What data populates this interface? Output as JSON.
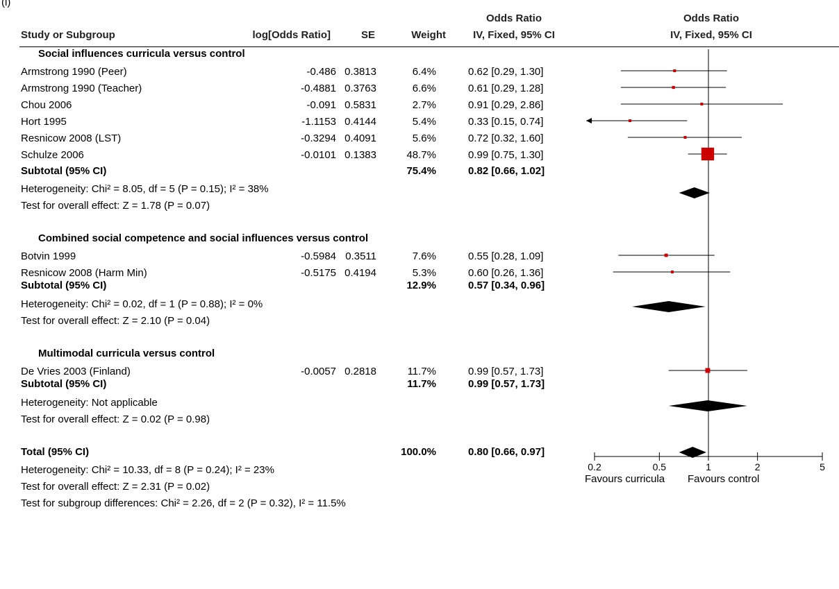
{
  "chart_data": {
    "type": "forest",
    "corner_label": "(i)",
    "headers": {
      "study": "Study or Subgroup",
      "logor": "log[Odds Ratio]",
      "se": "SE",
      "weight": "Weight",
      "or_title": "Odds Ratio",
      "or_method": "IV, Fixed, 95% CI",
      "plot_title": "Odds Ratio",
      "plot_method": "IV, Fixed, 95% CI"
    },
    "x_axis": {
      "scale": "log",
      "ticks": [
        "0.2",
        "0.5",
        "1",
        "2",
        "5"
      ],
      "tick_values": [
        0.2,
        0.5,
        1,
        2,
        5
      ],
      "range": [
        0.2,
        5
      ],
      "favours_left": "Favours curricula",
      "favours_right": "Favours control"
    },
    "groups": [
      {
        "title": "Social influences curricula versus control",
        "studies": [
          {
            "name": "Armstrong 1990 (Peer)",
            "logor": "-0.486",
            "se": "0.3813",
            "weight": "6.4%",
            "ci_text": "0.62 [0.29, 1.30]",
            "or": 0.62,
            "lo": 0.29,
            "hi": 1.3,
            "w": 6.4
          },
          {
            "name": "Armstrong 1990 (Teacher)",
            "logor": "-0.4881",
            "se": "0.3763",
            "weight": "6.6%",
            "ci_text": "0.61 [0.29, 1.28]",
            "or": 0.61,
            "lo": 0.29,
            "hi": 1.28,
            "w": 6.6
          },
          {
            "name": "Chou 2006",
            "logor": "-0.091",
            "se": "0.5831",
            "weight": "2.7%",
            "ci_text": "0.91 [0.29, 2.86]",
            "or": 0.91,
            "lo": 0.29,
            "hi": 2.86,
            "w": 2.7
          },
          {
            "name": "Hort 1995",
            "logor": "-1.1153",
            "se": "0.4144",
            "weight": "5.4%",
            "ci_text": "0.33 [0.15, 0.74]",
            "or": 0.33,
            "lo": 0.15,
            "hi": 0.74,
            "w": 5.4
          },
          {
            "name": "Resnicow 2008 (LST)",
            "logor": "-0.3294",
            "se": "0.4091",
            "weight": "5.6%",
            "ci_text": "0.72 [0.32, 1.60]",
            "or": 0.72,
            "lo": 0.32,
            "hi": 1.6,
            "w": 5.6
          },
          {
            "name": "Schulze 2006",
            "logor": "-0.0101",
            "se": "0.1383",
            "weight": "48.7%",
            "ci_text": "0.99 [0.75, 1.30]",
            "or": 0.99,
            "lo": 0.75,
            "hi": 1.3,
            "w": 48.7
          }
        ],
        "subtotal": {
          "label": "Subtotal (95% CI)",
          "weight": "75.4%",
          "ci_text": "0.82 [0.66, 1.02]",
          "or": 0.82,
          "lo": 0.66,
          "hi": 1.02
        },
        "heterogeneity": "Heterogeneity: Chi² = 8.05, df = 5 (P = 0.15); I² = 38%",
        "overall": "Test for overall effect: Z = 1.78 (P = 0.07)"
      },
      {
        "title": "Combined social competence and social influences versus control",
        "studies": [
          {
            "name": "Botvin 1999",
            "logor": "-0.5984",
            "se": "0.3511",
            "weight": "7.6%",
            "ci_text": "0.55 [0.28, 1.09]",
            "or": 0.55,
            "lo": 0.28,
            "hi": 1.09,
            "w": 7.6
          },
          {
            "name": "Resnicow 2008 (Harm Min)",
            "logor": "-0.5175",
            "se": "0.4194",
            "weight": "5.3%",
            "ci_text": "0.60 [0.26, 1.36]",
            "or": 0.6,
            "lo": 0.26,
            "hi": 1.36,
            "w": 5.3
          }
        ],
        "subtotal": {
          "label": "Subtotal (95% CI)",
          "weight": "12.9%",
          "ci_text": "0.57 [0.34, 0.96]",
          "or": 0.57,
          "lo": 0.34,
          "hi": 0.96
        },
        "heterogeneity": "Heterogeneity: Chi² = 0.02, df = 1 (P = 0.88); I² = 0%",
        "overall": "Test for overall effect: Z = 2.10 (P = 0.04)"
      },
      {
        "title": "Multimodal curricula versus control",
        "studies": [
          {
            "name": "De Vries 2003 (Finland)",
            "logor": "-0.0057",
            "se": "0.2818",
            "weight": "11.7%",
            "ci_text": "0.99 [0.57, 1.73]",
            "or": 0.99,
            "lo": 0.57,
            "hi": 1.73,
            "w": 11.7
          }
        ],
        "subtotal": {
          "label": "Subtotal (95% CI)",
          "weight": "11.7%",
          "ci_text": "0.99 [0.57, 1.73]",
          "or": 0.99,
          "lo": 0.57,
          "hi": 1.73
        },
        "heterogeneity": "Heterogeneity: Not applicable",
        "overall": "Test for overall effect: Z = 0.02 (P = 0.98)"
      }
    ],
    "total": {
      "label": "Total (95% CI)",
      "weight": "100.0%",
      "ci_text": "0.80 [0.66, 0.97]",
      "or": 0.8,
      "lo": 0.66,
      "hi": 0.97,
      "heterogeneity": "Heterogeneity: Chi² = 10.33, df = 8 (P = 0.24); I² = 23%",
      "overall": "Test for overall effect: Z = 2.31 (P = 0.02)",
      "subgroup": "Test for subgroup differences: Chi² = 2.26, df = 2 (P = 0.32), I² = 11.5%"
    },
    "colors": {
      "study_marker": "#cc0000",
      "diamond": "#000000",
      "text": "#000000"
    }
  }
}
